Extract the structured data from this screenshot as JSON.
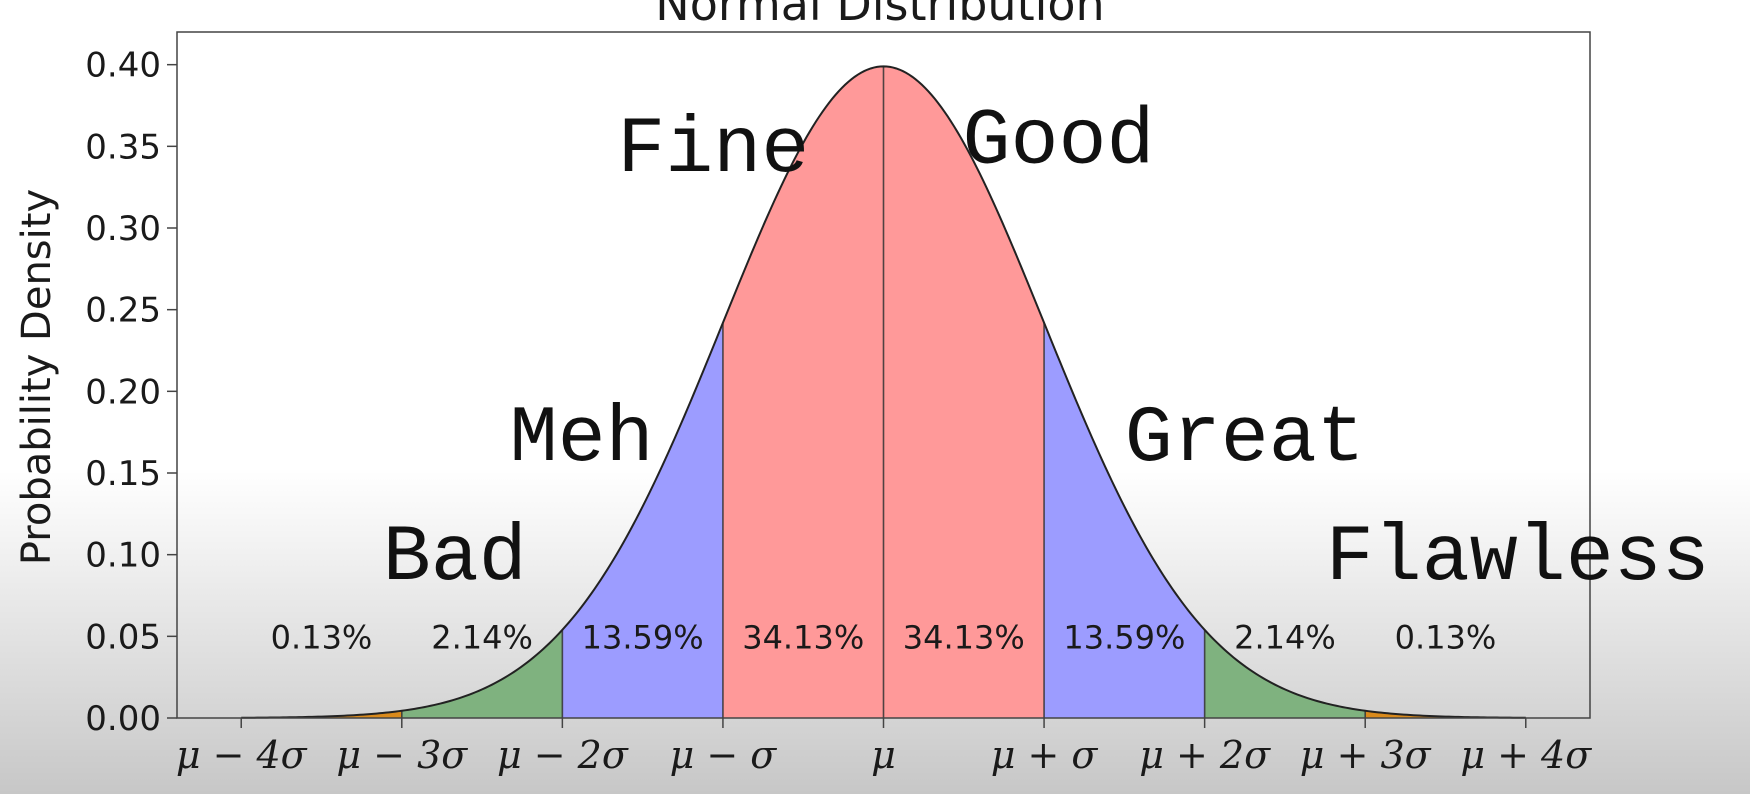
{
  "chart_data": {
    "type": "area",
    "title": "Normal Distribution",
    "ylabel": "Probability Density",
    "xlabel": "",
    "xlim": [
      -4.4,
      4.4
    ],
    "ylim": [
      0,
      0.42
    ],
    "yticks": [
      "0.00",
      "0.05",
      "0.10",
      "0.15",
      "0.20",
      "0.25",
      "0.30",
      "0.35",
      "0.40"
    ],
    "xticks": [
      {
        "x": -4,
        "label": "μ − 4σ"
      },
      {
        "x": -3,
        "label": "μ − 3σ"
      },
      {
        "x": -2,
        "label": "μ − 2σ"
      },
      {
        "x": -1,
        "label": "μ − σ"
      },
      {
        "x": 0,
        "label": "μ"
      },
      {
        "x": 1,
        "label": "μ + σ"
      },
      {
        "x": 2,
        "label": "μ + 2σ"
      },
      {
        "x": 3,
        "label": "μ + 3σ"
      },
      {
        "x": 4,
        "label": "μ + 4σ"
      }
    ],
    "bands": [
      {
        "from": -4,
        "to": -3,
        "percent": "0.13%",
        "color": "#d98a1c"
      },
      {
        "from": -3,
        "to": -2,
        "percent": "2.14%",
        "color": "#7fb27f"
      },
      {
        "from": -2,
        "to": -1,
        "percent": "13.59%",
        "color": "#9c9cff"
      },
      {
        "from": -1,
        "to": 0,
        "percent": "34.13%",
        "color": "#ff9999"
      },
      {
        "from": 0,
        "to": 1,
        "percent": "34.13%",
        "color": "#ff9999"
      },
      {
        "from": 1,
        "to": 2,
        "percent": "13.59%",
        "color": "#9c9cff"
      },
      {
        "from": 2,
        "to": 3,
        "percent": "2.14%",
        "color": "#7fb27f"
      },
      {
        "from": 3,
        "to": 4,
        "percent": "0.13%",
        "color": "#d98a1c"
      }
    ],
    "annotations": [
      {
        "text": "Fine",
        "x": -1.06,
        "y": 0.335
      },
      {
        "text": "Good",
        "x": 1.09,
        "y": 0.34
      },
      {
        "text": "Meh",
        "x": -1.88,
        "y": 0.158
      },
      {
        "text": "Great",
        "x": 2.25,
        "y": 0.158
      },
      {
        "text": "Bad",
        "x": -2.67,
        "y": 0.085
      },
      {
        "text": "Flawless",
        "x": 3.95,
        "y": 0.085
      }
    ],
    "grid": false,
    "legend": "none"
  }
}
